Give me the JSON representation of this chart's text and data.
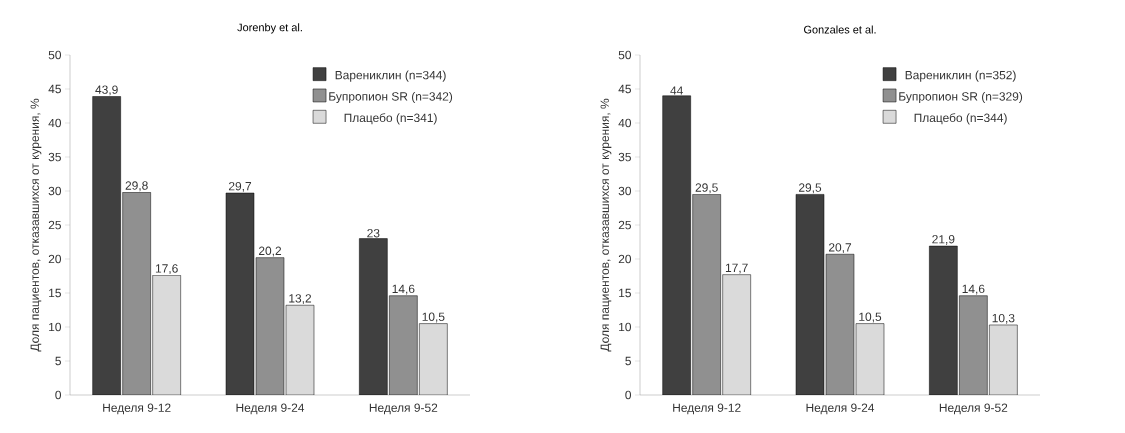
{
  "chart_data": [
    {
      "type": "bar",
      "title": "Jorenby et al.",
      "ylabel": "Доля пациентов, отказавшихся от курения, %",
      "categories": [
        "Неделя 9-12",
        "Неделя 9-24",
        "Неделя 9-52"
      ],
      "ylim": [
        0,
        50
      ],
      "yticks": [
        0,
        5,
        10,
        15,
        20,
        25,
        30,
        35,
        40,
        45,
        50
      ],
      "legend": "top right",
      "grid": false,
      "series": [
        {
          "name": "Варениклин (n=344)",
          "color": "#404040",
          "values": [
            43.9,
            29.7,
            23
          ],
          "value_labels": [
            "43,9",
            "29,7",
            "23"
          ]
        },
        {
          "name": "Бупропион SR (n=342)",
          "color": "#909090",
          "values": [
            29.8,
            20.2,
            14.6
          ],
          "value_labels": [
            "29,8",
            "20,2",
            "14,6"
          ]
        },
        {
          "name": "Плацебо (n=341)",
          "color": "#dadada",
          "values": [
            17.6,
            13.2,
            10.5
          ],
          "value_labels": [
            "17,6",
            "13,2",
            "10,5"
          ]
        }
      ]
    },
    {
      "type": "bar",
      "title": "Gonzales et al.",
      "ylabel": "Доля пациентов, отказавшихся от курения, %",
      "categories": [
        "Неделя 9-12",
        "Неделя 9-24",
        "Неделя 9-52"
      ],
      "ylim": [
        0,
        50
      ],
      "yticks": [
        0,
        5,
        10,
        15,
        20,
        25,
        30,
        35,
        40,
        45,
        50
      ],
      "legend": "top right",
      "grid": false,
      "series": [
        {
          "name": "Варениклин (n=352)",
          "color": "#404040",
          "values": [
            44,
            29.5,
            21.9
          ],
          "value_labels": [
            "44",
            "29,5",
            "21,9"
          ]
        },
        {
          "name": "Бупропион SR (n=329)",
          "color": "#909090",
          "values": [
            29.5,
            20.7,
            14.6
          ],
          "value_labels": [
            "29,5",
            "20,7",
            "14,6"
          ]
        },
        {
          "name": "Плацебо (n=344)",
          "color": "#dadada",
          "values": [
            17.7,
            10.5,
            10.3
          ],
          "value_labels": [
            "17,7",
            "10,5",
            "10,3"
          ]
        }
      ]
    }
  ]
}
